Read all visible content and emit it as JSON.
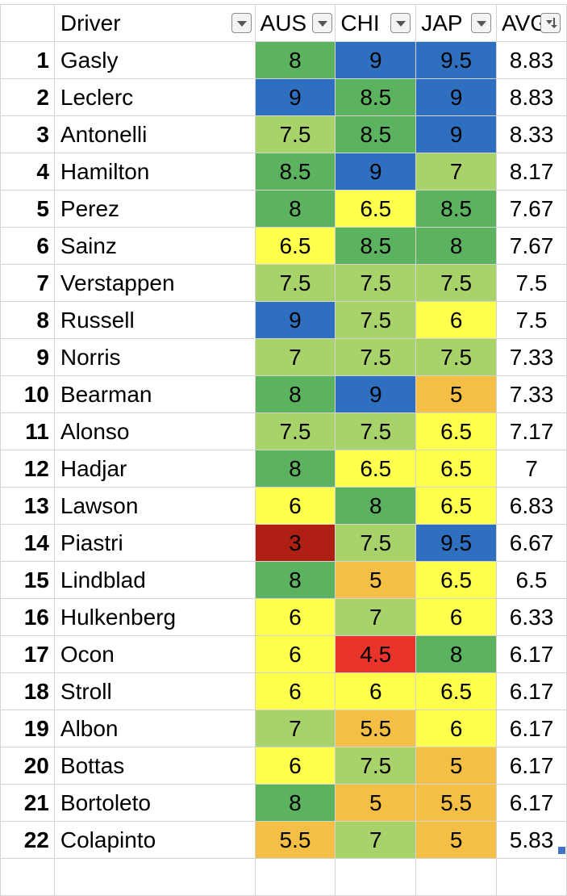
{
  "header": {
    "driver": "Driver",
    "aus": "AUS",
    "chi": "CHI",
    "jap": "JAP",
    "avg": "AVG"
  },
  "colors": {
    "blue": "#2e6fbf",
    "dark_green": "#5cb35f",
    "light_green": "#a7d36a",
    "yellow": "#ffff4d",
    "orange": "#f5bf45",
    "red": "#e8342a",
    "dark_red": "#b01f14"
  },
  "rows": [
    {
      "n": "1",
      "driver": "Gasly",
      "aus": "8",
      "chi": "9",
      "jap": "9.5",
      "avg": "8.83"
    },
    {
      "n": "2",
      "driver": "Leclerc",
      "aus": "9",
      "chi": "8.5",
      "jap": "9",
      "avg": "8.83"
    },
    {
      "n": "3",
      "driver": "Antonelli",
      "aus": "7.5",
      "chi": "8.5",
      "jap": "9",
      "avg": "8.33"
    },
    {
      "n": "4",
      "driver": "Hamilton",
      "aus": "8.5",
      "chi": "9",
      "jap": "7",
      "avg": "8.17"
    },
    {
      "n": "5",
      "driver": "Perez",
      "aus": "8",
      "chi": "6.5",
      "jap": "8.5",
      "avg": "7.67"
    },
    {
      "n": "6",
      "driver": "Sainz",
      "aus": "6.5",
      "chi": "8.5",
      "jap": "8",
      "avg": "7.67"
    },
    {
      "n": "7",
      "driver": "Verstappen",
      "aus": "7.5",
      "chi": "7.5",
      "jap": "7.5",
      "avg": "7.5"
    },
    {
      "n": "8",
      "driver": "Russell",
      "aus": "9",
      "chi": "7.5",
      "jap": "6",
      "avg": "7.5"
    },
    {
      "n": "9",
      "driver": "Norris",
      "aus": "7",
      "chi": "7.5",
      "jap": "7.5",
      "avg": "7.33"
    },
    {
      "n": "10",
      "driver": "Bearman",
      "aus": "8",
      "chi": "9",
      "jap": "5",
      "avg": "7.33"
    },
    {
      "n": "11",
      "driver": "Alonso",
      "aus": "7.5",
      "chi": "7.5",
      "jap": "6.5",
      "avg": "7.17"
    },
    {
      "n": "12",
      "driver": "Hadjar",
      "aus": "8",
      "chi": "6.5",
      "jap": "6.5",
      "avg": "7"
    },
    {
      "n": "13",
      "driver": "Lawson",
      "aus": "6",
      "chi": "8",
      "jap": "6.5",
      "avg": "6.83"
    },
    {
      "n": "14",
      "driver": "Piastri",
      "aus": "3",
      "chi": "7.5",
      "jap": "9.5",
      "avg": "6.67"
    },
    {
      "n": "15",
      "driver": "Lindblad",
      "aus": "8",
      "chi": "5",
      "jap": "6.5",
      "avg": "6.5"
    },
    {
      "n": "16",
      "driver": "Hulkenberg",
      "aus": "6",
      "chi": "7",
      "jap": "6",
      "avg": "6.33"
    },
    {
      "n": "17",
      "driver": "Ocon",
      "aus": "6",
      "chi": "4.5",
      "jap": "8",
      "avg": "6.17"
    },
    {
      "n": "18",
      "driver": "Stroll",
      "aus": "6",
      "chi": "6",
      "jap": "6.5",
      "avg": "6.17"
    },
    {
      "n": "19",
      "driver": "Albon",
      "aus": "7",
      "chi": "5.5",
      "jap": "6",
      "avg": "6.17"
    },
    {
      "n": "20",
      "driver": "Bottas",
      "aus": "6",
      "chi": "7.5",
      "jap": "5",
      "avg": "6.17"
    },
    {
      "n": "21",
      "driver": "Bortoleto",
      "aus": "8",
      "chi": "5",
      "jap": "5.5",
      "avg": "6.17"
    },
    {
      "n": "22",
      "driver": "Colapinto",
      "aus": "5.5",
      "chi": "7",
      "jap": "5",
      "avg": "5.83"
    }
  ]
}
